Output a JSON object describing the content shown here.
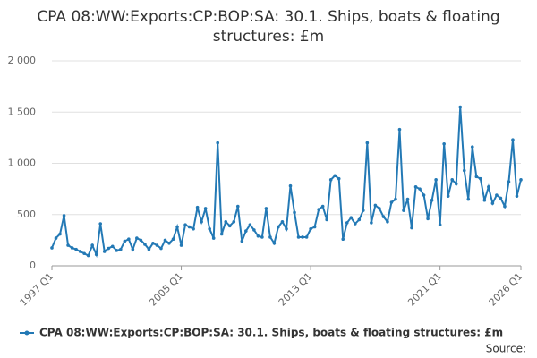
{
  "chart_data": {
    "type": "line",
    "title": "CPA 08:WW:Exports:CP:BOP:SA: 30.1. Ships, boats & floating structures: £m",
    "categories": [
      "1997 Q1",
      null,
      null,
      null,
      null,
      null,
      null,
      null,
      null,
      null,
      null,
      null,
      null,
      null,
      null,
      null,
      null,
      null,
      null,
      null,
      null,
      null,
      null,
      null,
      null,
      null,
      null,
      null,
      null,
      null,
      null,
      null,
      "2005 Q1",
      null,
      null,
      null,
      null,
      null,
      null,
      null,
      null,
      null,
      null,
      null,
      null,
      null,
      null,
      null,
      null,
      null,
      null,
      null,
      null,
      null,
      null,
      null,
      null,
      null,
      null,
      null,
      null,
      null,
      null,
      null,
      "2013 Q1",
      null,
      null,
      null,
      null,
      null,
      null,
      null,
      null,
      null,
      null,
      null,
      null,
      null,
      null,
      null,
      null,
      null,
      null,
      null,
      null,
      null,
      null,
      null,
      null,
      null,
      null,
      null,
      null,
      null,
      null,
      null,
      "2021 Q1",
      null,
      null,
      null,
      null,
      null,
      null,
      null,
      null,
      null,
      null,
      null,
      null,
      null,
      null,
      null,
      null,
      null,
      null,
      null,
      "2026 Q1"
    ],
    "series": [
      {
        "name": "CPA 08:WW:Exports:CP:BOP:SA: 30.1. Ships, boats & floating structures: £m",
        "color": "#2379b5",
        "values": [
          175,
          270,
          310,
          490,
          200,
          175,
          160,
          140,
          120,
          100,
          200,
          110,
          410,
          140,
          170,
          190,
          150,
          160,
          240,
          260,
          160,
          270,
          250,
          210,
          160,
          220,
          200,
          170,
          250,
          220,
          260,
          380,
          200,
          400,
          380,
          360,
          570,
          430,
          560,
          360,
          270,
          1200,
          310,
          430,
          390,
          430,
          580,
          240,
          340,
          400,
          350,
          290,
          280,
          560,
          280,
          220,
          380,
          430,
          360,
          780,
          520,
          280,
          280,
          280,
          360,
          380,
          550,
          580,
          450,
          840,
          880,
          850,
          260,
          420,
          470,
          410,
          450,
          540,
          1200,
          420,
          590,
          560,
          480,
          430,
          620,
          650,
          1330,
          540,
          650,
          370,
          770,
          750,
          690,
          460,
          640,
          840,
          400,
          1190,
          680,
          840,
          800,
          1550,
          930,
          650,
          1160,
          870,
          850,
          640,
          770,
          610,
          690,
          660,
          580,
          820,
          1230,
          680,
          840
        ]
      }
    ],
    "ylim": [
      0,
      2000
    ],
    "yticks": [
      0,
      500,
      {
        "value": 1000,
        "label": "1 000"
      },
      {
        "value": 1500,
        "label": "1 500"
      },
      {
        "value": 2000,
        "label": "2 000"
      }
    ],
    "grid": true,
    "source": "Source:"
  }
}
